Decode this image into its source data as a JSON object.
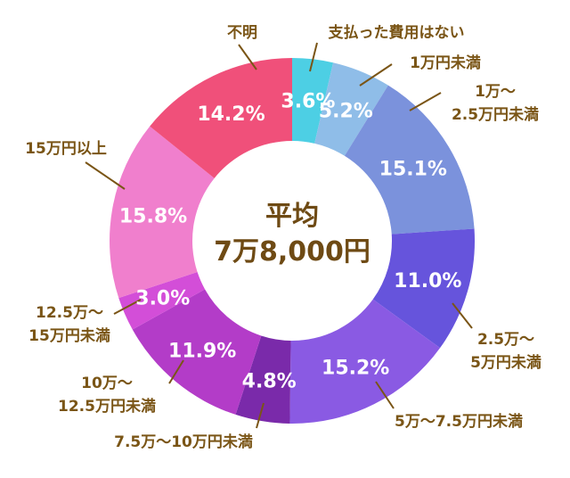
{
  "chart_data": {
    "type": "pie",
    "title": "",
    "center_text": [
      "平均",
      "7万8,000円"
    ],
    "slices": [
      {
        "label": "支払った費用はない",
        "value": 3.6,
        "display": "3.6%",
        "color": "#4dcfe4"
      },
      {
        "label": "1万円未満",
        "value": 5.2,
        "display": "5.2%",
        "color": "#8fbde8"
      },
      {
        "label": "1万～2.5万円未満",
        "value": 15.1,
        "display": "15.1%",
        "color": "#7b92dc"
      },
      {
        "label": "2.5万～5万円未満",
        "value": 11.0,
        "display": "11.0%",
        "color": "#6654dc"
      },
      {
        "label": "5万～7.5万円未満",
        "value": 15.2,
        "display": "15.2%",
        "color": "#8a5ae3"
      },
      {
        "label": "7.5万～10万円未満",
        "value": 4.8,
        "display": "4.8%",
        "color": "#7a2aaa"
      },
      {
        "label": "10万～12.5万円未満",
        "value": 11.9,
        "display": "11.9%",
        "color": "#b33cc8"
      },
      {
        "label": "12.5万～15万円未満",
        "value": 3.0,
        "display": "3.0%",
        "color": "#d34ed8"
      },
      {
        "label": "15万円以上",
        "value": 15.8,
        "display": "15.8%",
        "color": "#f07fcd"
      },
      {
        "label": "不明",
        "value": 14.2,
        "display": "14.2%",
        "color": "#f0507a"
      }
    ],
    "outer_labels": [
      [
        "支払った費用はない"
      ],
      [
        "1万円未満"
      ],
      [
        "1万～",
        "2.5万円未満"
      ],
      [
        "2.5万～",
        "5万円未満"
      ],
      [
        "5万～7.5万円未満"
      ],
      [
        "7.5万～10万円未満"
      ],
      [
        "10万～",
        "12.5万円未満"
      ],
      [
        "12.5万～",
        "15万円未満"
      ],
      [
        "15万円以上"
      ],
      [
        "不明"
      ]
    ]
  }
}
